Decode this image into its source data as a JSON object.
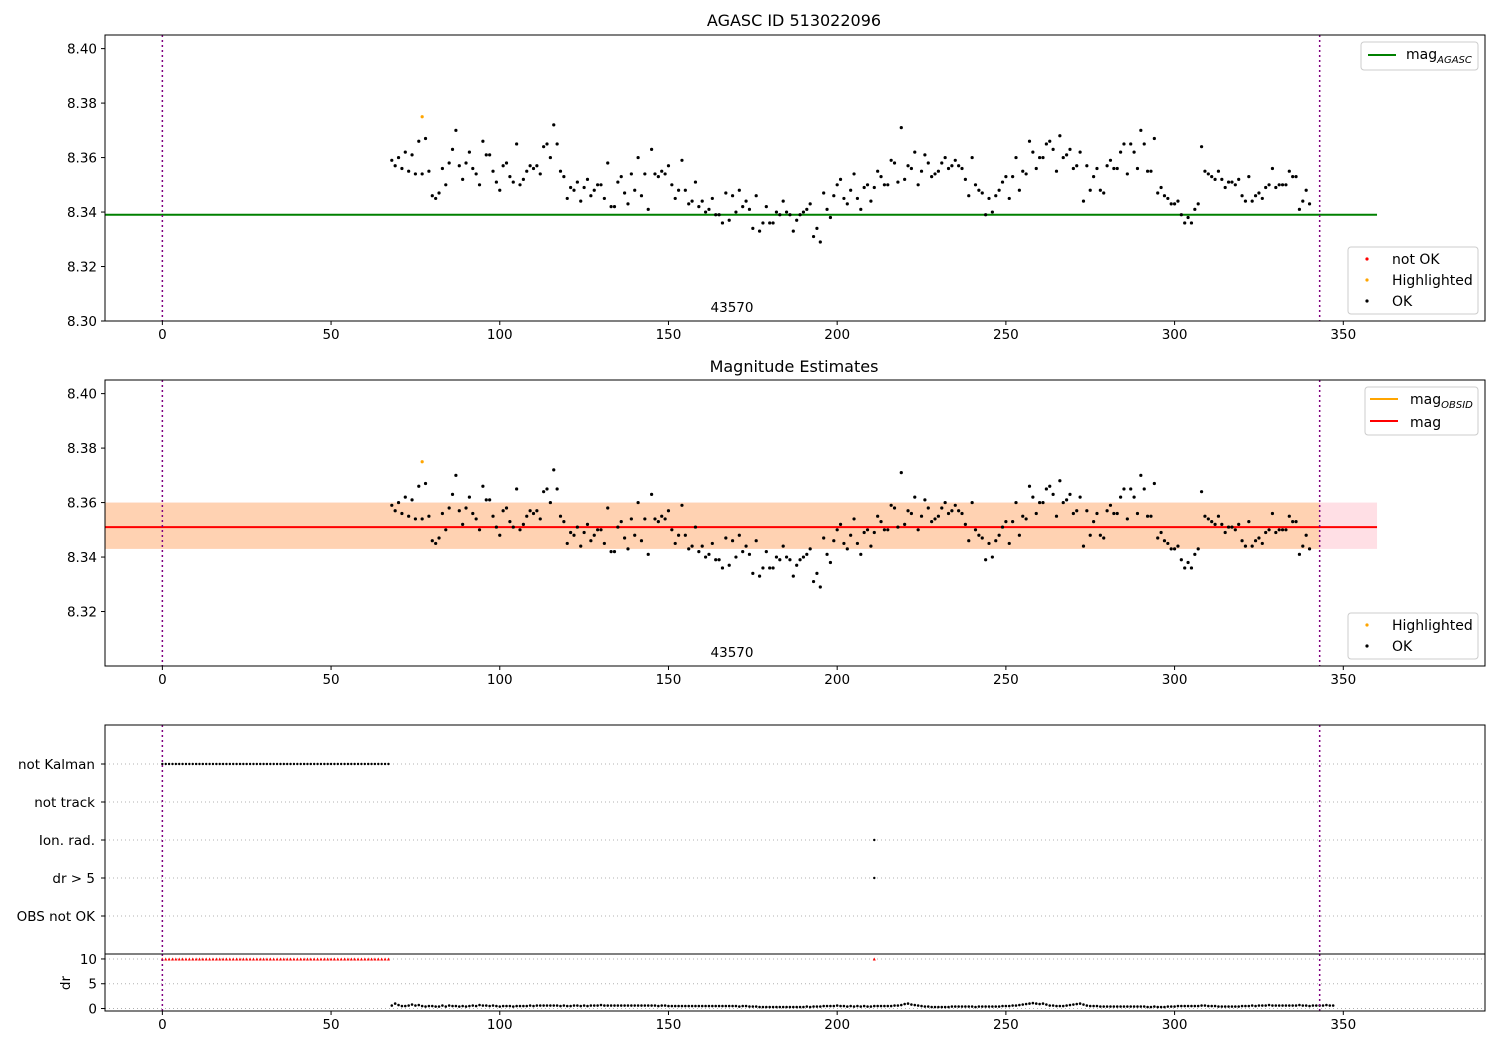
{
  "colors": {
    "ok": "#000000",
    "not_ok": "#ff0000",
    "highlighted": "#ffa500",
    "mag_agasc": "#008000",
    "mag_obsid": "#ffa500",
    "mag": "#ff0000",
    "band_obsid": "#ffa500",
    "band_mag": "#ffc0cb",
    "obs_boundary": "#800080"
  },
  "chart_data": [
    {
      "type": "scatter",
      "title": "AGASC ID 513022096",
      "xlim": [
        -17,
        392
      ],
      "ylim": [
        8.3,
        8.405
      ],
      "xticks": [
        "0",
        "50",
        "100",
        "150",
        "200",
        "250",
        "300",
        "350"
      ],
      "yticks": [
        "8.30",
        "8.32",
        "8.34",
        "8.36",
        "8.38",
        "8.40"
      ],
      "obsid_label": "43570",
      "obs_boundaries": [
        0,
        343
      ],
      "hlines": [
        {
          "name": "mag_AGASC",
          "y": 8.339,
          "x_range": [
            -17,
            360
          ]
        }
      ],
      "legend_lines": [
        {
          "label": "mag",
          "subscript": "AGASC"
        }
      ],
      "legend_points": [
        "not OK",
        "Highlighted",
        "OK"
      ],
      "highlighted_points": [
        [
          77,
          8.375
        ]
      ],
      "series": [
        {
          "name": "OK",
          "x_start": 68,
          "x_step": 1,
          "y": [
            8.359,
            8.357,
            8.36,
            8.356,
            8.362,
            8.355,
            8.361,
            8.354,
            8.366,
            8.354,
            8.367,
            8.355,
            8.346,
            8.345,
            8.347,
            8.356,
            8.35,
            8.358,
            8.363,
            8.37,
            8.357,
            8.352,
            8.358,
            8.362,
            8.356,
            8.354,
            8.35,
            8.366,
            8.361,
            8.361,
            8.355,
            8.351,
            8.348,
            8.357,
            8.358,
            8.353,
            8.351,
            8.365,
            8.35,
            8.352,
            8.355,
            8.357,
            8.356,
            8.357,
            8.354,
            8.364,
            8.365,
            8.36,
            8.372,
            8.365,
            8.355,
            8.353,
            8.345,
            8.349,
            8.348,
            8.351,
            8.344,
            8.349,
            8.352,
            8.346,
            8.348,
            8.35,
            8.35,
            8.345,
            8.358,
            8.342,
            8.342,
            8.351,
            8.353,
            8.347,
            8.343,
            8.354,
            8.348,
            8.36,
            8.346,
            8.354,
            8.341,
            8.363,
            8.354,
            8.353,
            8.355,
            8.354,
            8.357,
            8.35,
            8.345,
            8.348,
            8.359,
            8.348,
            8.343,
            8.344,
            8.351,
            8.342,
            8.344,
            8.34,
            8.341,
            8.345,
            8.339,
            8.339,
            8.336,
            8.347,
            8.337,
            8.346,
            8.34,
            8.348,
            8.342,
            8.344,
            8.341,
            8.334,
            8.346,
            8.333,
            8.336,
            8.342,
            8.336,
            8.336,
            8.34,
            8.339,
            8.344,
            8.34,
            8.339,
            8.333,
            8.337,
            8.339,
            8.34,
            8.341,
            8.343,
            8.331,
            8.334,
            8.329,
            8.347,
            8.341,
            8.338,
            8.346,
            8.35,
            8.352,
            8.345,
            8.343,
            8.348,
            8.354,
            8.345,
            8.341,
            8.349,
            8.35,
            8.344,
            8.349,
            8.355,
            8.353,
            8.35,
            8.35,
            8.359,
            8.358,
            8.351,
            8.371,
            8.352,
            8.357,
            8.356,
            8.362,
            8.35,
            8.355,
            8.361,
            8.358,
            8.353,
            8.354,
            8.355,
            8.358,
            8.36,
            8.356,
            8.357,
            8.359,
            8.357,
            8.356,
            8.352,
            8.346,
            8.36,
            8.35,
            8.348,
            8.347,
            8.339,
            8.345,
            8.34,
            8.346,
            8.348,
            8.351,
            8.353,
            8.345,
            8.353,
            8.36,
            8.348,
            8.355,
            8.354,
            8.366,
            8.362,
            8.356,
            8.36,
            8.36,
            8.365,
            8.366,
            8.363,
            8.355,
            8.368,
            8.36,
            8.361,
            8.363,
            8.356,
            8.357,
            8.362,
            8.344,
            8.357,
            8.348,
            8.353,
            8.356,
            8.348,
            8.347,
            8.357,
            8.359,
            8.356,
            8.356,
            8.362,
            8.365,
            8.354,
            8.365,
            8.362,
            8.356,
            8.37,
            8.365,
            8.355,
            8.355,
            8.367,
            8.347,
            8.349,
            8.346,
            8.345,
            8.343,
            8.343,
            8.344,
            8.339,
            8.336,
            8.338,
            8.336,
            8.341,
            8.343,
            8.364,
            8.355,
            8.354,
            8.353,
            8.352,
            8.355,
            8.352,
            8.349,
            8.351,
            8.351,
            8.35,
            8.352,
            8.346,
            8.344,
            8.353,
            8.344,
            8.346,
            8.347,
            8.345,
            8.349,
            8.35,
            8.356,
            8.349,
            8.35,
            8.35,
            8.35,
            8.355,
            8.353,
            8.353,
            8.341,
            8.344,
            8.348,
            8.343
          ]
        }
      ]
    },
    {
      "type": "scatter",
      "title": "Magnitude Estimates",
      "xlim": [
        -17,
        392
      ],
      "ylim": [
        8.3,
        8.405
      ],
      "xticks": [
        "0",
        "50",
        "100",
        "150",
        "200",
        "250",
        "300",
        "350"
      ],
      "yticks": [
        "8.32",
        "8.34",
        "8.36",
        "8.38",
        "8.40"
      ],
      "obsid_label": "43570",
      "obs_boundaries": [
        0,
        343
      ],
      "hlines": [
        {
          "name": "mag",
          "y": 8.351,
          "x_range": [
            -17,
            360
          ]
        }
      ],
      "bands": [
        {
          "name": "mag_OBSID band",
          "y_range": [
            8.343,
            8.36
          ],
          "x_range": [
            -17,
            343
          ]
        },
        {
          "name": "mag band",
          "y_range": [
            8.343,
            8.36
          ],
          "x_range": [
            -17,
            360
          ]
        }
      ],
      "legend_lines": [
        {
          "label": "mag",
          "subscript": "OBSID"
        },
        {
          "label": "mag",
          "subscript": ""
        }
      ],
      "legend_points": [
        "Highlighted",
        "OK"
      ],
      "highlighted_points": [
        [
          77,
          8.375
        ]
      ],
      "series_ref": "same as panel 1 OK series"
    },
    {
      "type": "scatter",
      "title": "",
      "xlim": [
        -17,
        392
      ],
      "xticks": [
        "0",
        "50",
        "100",
        "150",
        "200",
        "250",
        "300",
        "350"
      ],
      "flag_rows": [
        "not Kalman",
        "not track",
        "Ion. rad.",
        "dr > 5",
        "OBS not OK"
      ],
      "flags": {
        "not Kalman": {
          "x_range": [
            0,
            67
          ],
          "step": 1
        },
        "not track": {
          "points": []
        },
        "Ion. rad.": {
          "points": [
            211
          ]
        },
        "dr > 5": {
          "points": [
            211
          ]
        },
        "OBS not OK": {
          "points": []
        }
      },
      "obs_boundaries": [
        0,
        343
      ]
    },
    {
      "type": "scatter",
      "title": "",
      "ylabel": "dr",
      "xlim": [
        -17,
        392
      ],
      "ylim": [
        -0.5,
        11
      ],
      "yticks": [
        "0",
        "5",
        "10"
      ],
      "xticks": [
        "0",
        "50",
        "100",
        "150",
        "200",
        "250",
        "300",
        "350"
      ],
      "red_points": {
        "x_range": [
          0,
          67
        ],
        "y": 10,
        "extra_x": [
          211
        ]
      },
      "dr_series": {
        "x_start": 68,
        "x_end": 343,
        "y": [
          0.6,
          1.0,
          0.7,
          0.5,
          0.5,
          0.6,
          0.8,
          0.6,
          0.7,
          0.5,
          0.4,
          0.5,
          0.5,
          0.4,
          0.4,
          0.6,
          0.4,
          0.6,
          0.5,
          0.5,
          0.4,
          0.5,
          0.4,
          0.5,
          0.6,
          0.5,
          0.7,
          0.6,
          0.6,
          0.5,
          0.6,
          0.5,
          0.4,
          0.5,
          0.5,
          0.5,
          0.4,
          0.5,
          0.5,
          0.5,
          0.5,
          0.6,
          0.5,
          0.6,
          0.6,
          0.6,
          0.6,
          0.6,
          0.6,
          0.6,
          0.5,
          0.6,
          0.5,
          0.5,
          0.6,
          0.6,
          0.5,
          0.6,
          0.5,
          0.6,
          0.6,
          0.6,
          0.7,
          0.6,
          0.6,
          0.6,
          0.6,
          0.6,
          0.6,
          0.6,
          0.6,
          0.6,
          0.6,
          0.6,
          0.6,
          0.6,
          0.6,
          0.6,
          0.6,
          0.5,
          0.6,
          0.6,
          0.5,
          0.5,
          0.5,
          0.5,
          0.5,
          0.5,
          0.5,
          0.5,
          0.5,
          0.5,
          0.5,
          0.5,
          0.5,
          0.5,
          0.5,
          0.5,
          0.5,
          0.5,
          0.5,
          0.5,
          0.5,
          0.4,
          0.5,
          0.5,
          0.4,
          0.4,
          0.4,
          0.3,
          0.3,
          0.3,
          0.3,
          0.3,
          0.3,
          0.3,
          0.3,
          0.3,
          0.3,
          0.3,
          0.3,
          0.3,
          0.3,
          0.4,
          0.3,
          0.4,
          0.4,
          0.4,
          0.5,
          0.5,
          0.5,
          0.5,
          0.6,
          0.5,
          0.5,
          0.4,
          0.5,
          0.4,
          0.5,
          0.4,
          0.5,
          0.4,
          0.4,
          0.5,
          0.5,
          0.5,
          0.5,
          0.5,
          0.5,
          0.6,
          0.6,
          0.7,
          0.9,
          1.0,
          0.8,
          0.7,
          0.6,
          0.5,
          0.4,
          0.4,
          0.3,
          0.3,
          0.3,
          0.3,
          0.3,
          0.3,
          0.4,
          0.4,
          0.4,
          0.4,
          0.4,
          0.4,
          0.4,
          0.3,
          0.4,
          0.4,
          0.4,
          0.4,
          0.4,
          0.4,
          0.4,
          0.5,
          0.5,
          0.5,
          0.6,
          0.6,
          0.7,
          0.8,
          0.9,
          1.0,
          1.1,
          1.0,
          0.9,
          1.0,
          0.8,
          0.6,
          0.6,
          0.5,
          0.5,
          0.5,
          0.6,
          0.7,
          0.8,
          0.9,
          1.0,
          0.8,
          0.6,
          0.5,
          0.5,
          0.5,
          0.4,
          0.4,
          0.4,
          0.4,
          0.4,
          0.4,
          0.4,
          0.4,
          0.4,
          0.4,
          0.4,
          0.4,
          0.4,
          0.4,
          0.3,
          0.3,
          0.4,
          0.3,
          0.3,
          0.3,
          0.4,
          0.4,
          0.4,
          0.5,
          0.5,
          0.5,
          0.5,
          0.5,
          0.5,
          0.5,
          0.6,
          0.6,
          0.5,
          0.5,
          0.5,
          0.4,
          0.4,
          0.4,
          0.4,
          0.4,
          0.4,
          0.4,
          0.5,
          0.5,
          0.5,
          0.6,
          0.5,
          0.6,
          0.6,
          0.6,
          0.7,
          0.6,
          0.6,
          0.6,
          0.6,
          0.6,
          0.6,
          0.6,
          0.6,
          0.7,
          0.6,
          0.6,
          0.5,
          0.6,
          0.6,
          0.6,
          0.6,
          0.7,
          0.6,
          0.6
        ]
      }
    }
  ]
}
